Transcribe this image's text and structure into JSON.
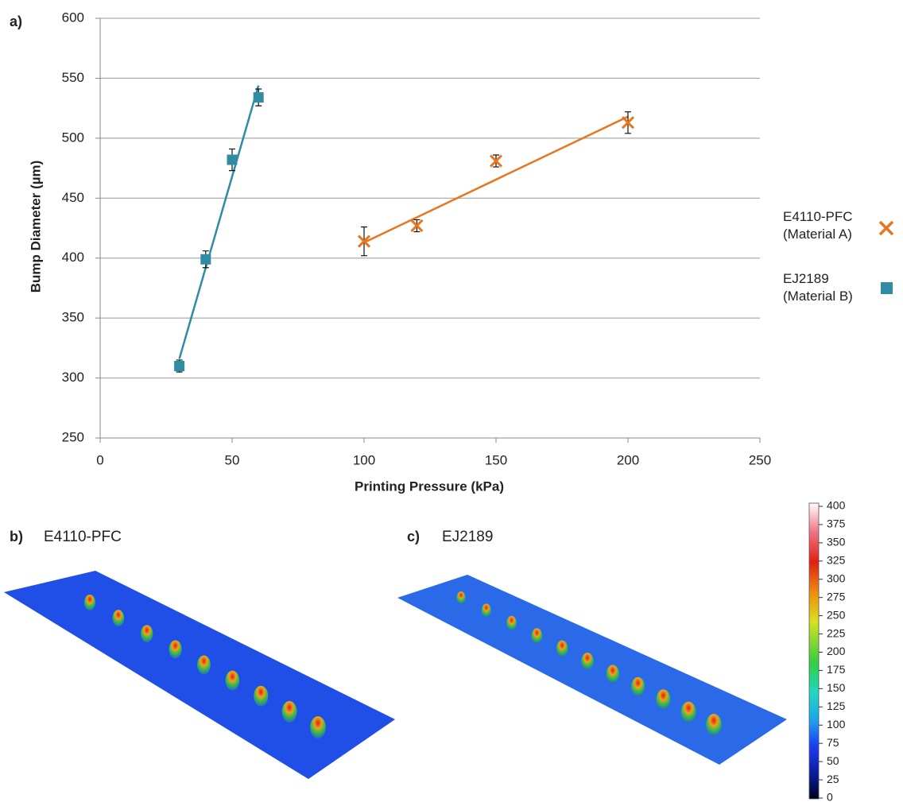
{
  "chart_data": {
    "type": "scatter",
    "panel_label": "a)",
    "x_label": "Printing Pressure (kPa)",
    "y_label": "Bump Diameter (µm)",
    "xlim": [
      0,
      250
    ],
    "xticks": [
      0,
      50,
      100,
      150,
      200,
      250
    ],
    "ylim": [
      250,
      600
    ],
    "yticks": [
      250,
      300,
      350,
      400,
      450,
      500,
      550,
      600
    ],
    "grid": true,
    "series": [
      {
        "name": "E4110-PFC (Material A)",
        "color": "#e8761e",
        "marker": "x",
        "x": [
          100,
          120,
          150,
          200
        ],
        "values": [
          414,
          427,
          481,
          513
        ],
        "errors": [
          12,
          5,
          5,
          9
        ],
        "trend": {
          "x": [
            100,
            200
          ],
          "values": [
            413,
            518
          ]
        }
      },
      {
        "name": "EJ2189 (Material B)",
        "color": "#2f8ca3",
        "marker": "square",
        "x": [
          30,
          40,
          50,
          60
        ],
        "values": [
          310,
          399,
          482,
          534
        ],
        "errors": [
          5,
          7,
          9,
          7
        ],
        "trend": {
          "x": [
            30,
            60
          ],
          "values": [
            316,
            544
          ]
        }
      }
    ]
  },
  "panels": [
    {
      "label": "b)",
      "title": "E4110-PFC"
    },
    {
      "label": "c)",
      "title": "EJ2189"
    }
  ],
  "colorbar": {
    "lim": [
      0,
      400
    ],
    "ticks": [
      0,
      25,
      50,
      75,
      100,
      125,
      150,
      175,
      200,
      225,
      250,
      275,
      300,
      325,
      350,
      375,
      400
    ]
  }
}
